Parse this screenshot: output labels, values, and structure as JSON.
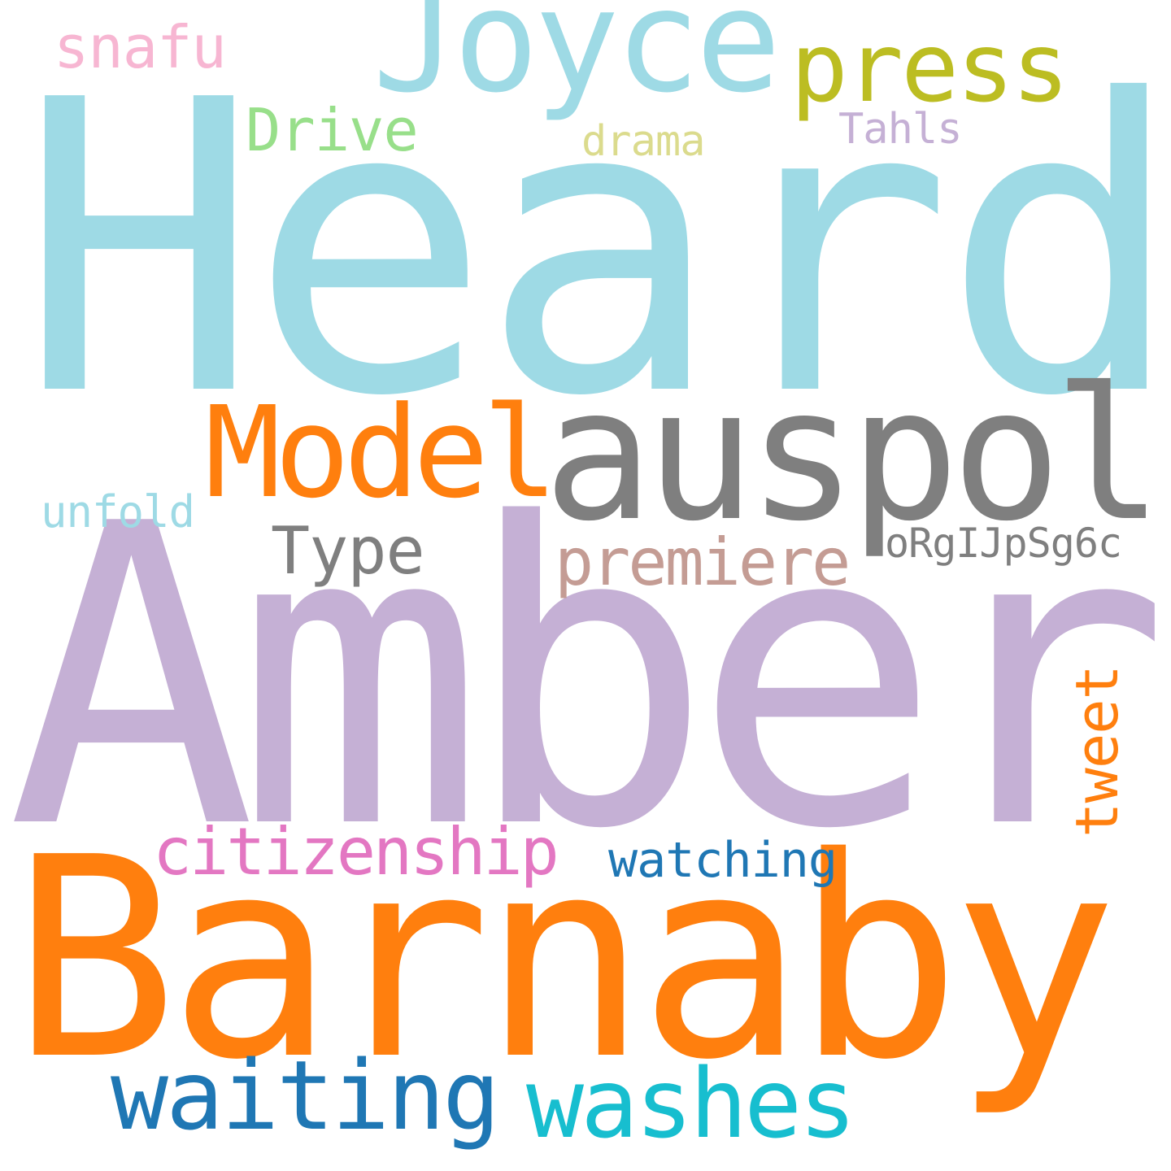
{
  "words": {
    "heard": {
      "text": "Heard",
      "color": "#9edae5"
    },
    "amber": {
      "text": "Amber",
      "color": "#c5b0d5"
    },
    "barnaby": {
      "text": "Barnaby",
      "color": "#ff7f0e"
    },
    "auspol": {
      "text": "auspol",
      "color": "#7f7f7f"
    },
    "joyce": {
      "text": "Joyce",
      "color": "#9edae5"
    },
    "model": {
      "text": "Model",
      "color": "#ff7f0e"
    },
    "press": {
      "text": "press",
      "color": "#bcbd22"
    },
    "waiting": {
      "text": "waiting",
      "color": "#1f77b4"
    },
    "washes": {
      "text": "washes",
      "color": "#17becf"
    },
    "citizenship": {
      "text": "citizenship",
      "color": "#e377c2"
    },
    "premiere": {
      "text": "premiere",
      "color": "#c49c94"
    },
    "type": {
      "text": "Type",
      "color": "#7f7f7f"
    },
    "tweet": {
      "text": "tweet",
      "color": "#ff7f0e"
    },
    "drive": {
      "text": "Drive",
      "color": "#98df8a"
    },
    "snafu": {
      "text": "snafu",
      "color": "#f7b6d2"
    },
    "watching": {
      "text": "watching",
      "color": "#1f77b4"
    },
    "orgijpsg6c": {
      "text": "oRgIJpSg6c",
      "color": "#7f7f7f"
    },
    "unfold": {
      "text": "unfold",
      "color": "#9edae5"
    },
    "tahls": {
      "text": "Tahls",
      "color": "#c5b0d5"
    },
    "drama": {
      "text": "drama",
      "color": "#dbdb8d"
    }
  }
}
